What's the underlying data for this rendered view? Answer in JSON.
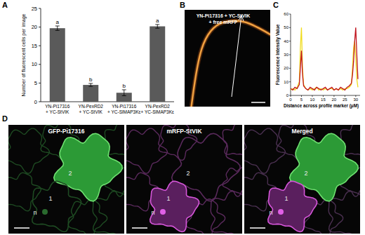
{
  "panel_labels": [
    "A",
    "B",
    "C",
    "D"
  ],
  "chart_data": [
    {
      "type": "bar",
      "y_label": "Number of fluorescent cells per image",
      "categories": [
        "YN-Pi17316 + YC-StVIK",
        "YN-PexRD2 + YC-StVIK",
        "YN-Pi17316 + YC-SlMAP3Kε",
        "YN-PexRD2 + YC-SlMAP3Kε"
      ],
      "values": [
        19.7,
        4.5,
        2.4,
        20.2
      ],
      "errors": [
        0.6,
        0.4,
        0.8,
        0.5
      ],
      "annotations": [
        "a",
        "b",
        "b",
        "a"
      ],
      "color": "#5a5a5a",
      "ylim": [
        0,
        25
      ],
      "yticks": [
        0,
        5,
        10,
        15,
        20,
        25
      ]
    },
    {
      "type": "line",
      "x_label": "Distance across profile marker (μM)",
      "y_label": "Fluorescence Intensity Value",
      "x": [
        0,
        1,
        2,
        3,
        4,
        4.5,
        5,
        5.5,
        6,
        7,
        8,
        9,
        10,
        11,
        12,
        13,
        14,
        15,
        16,
        17,
        18,
        19,
        20,
        21,
        22,
        23,
        24,
        25,
        26,
        27,
        28,
        28.5,
        29,
        29.5,
        30,
        30.5,
        31
      ],
      "series": [
        {
          "color": "#f0dc1e",
          "values": [
            4,
            5,
            4,
            6,
            10,
            35,
            50,
            20,
            8,
            5,
            4,
            5,
            4,
            5,
            6,
            4,
            5,
            4,
            5,
            4,
            5,
            5,
            4,
            5,
            4,
            5,
            4,
            5,
            5,
            6,
            8,
            20,
            35,
            40,
            28,
            12,
            6
          ]
        },
        {
          "color": "#c0141e",
          "values": [
            5,
            4,
            6,
            5,
            8,
            20,
            33,
            15,
            7,
            5,
            4,
            6,
            5,
            4,
            6,
            5,
            4,
            5,
            6,
            4,
            5,
            6,
            4,
            5,
            4,
            6,
            5,
            4,
            6,
            7,
            9,
            15,
            25,
            40,
            50,
            30,
            12
          ]
        }
      ],
      "xlim": [
        0,
        32
      ],
      "xticks": [
        0,
        5,
        10,
        15,
        20,
        25,
        30
      ],
      "ylim": [
        0,
        60
      ],
      "yticks": [
        0,
        10,
        20,
        30,
        40,
        50,
        60
      ]
    }
  ],
  "image_b": {
    "label_lines": [
      "YN-Pi17316 + YC-StVIK",
      "+ free mRFP"
    ]
  },
  "image_d": {
    "panels": [
      {
        "title": "GFP-Pi17316",
        "cell_labels": [
          "2",
          "1",
          "n"
        ]
      },
      {
        "title": "mRFP-StVIK",
        "cell_labels": [
          "2",
          "1",
          "n"
        ]
      },
      {
        "title": "Merged",
        "cell_labels": [
          "2",
          "1",
          "n"
        ]
      }
    ]
  }
}
